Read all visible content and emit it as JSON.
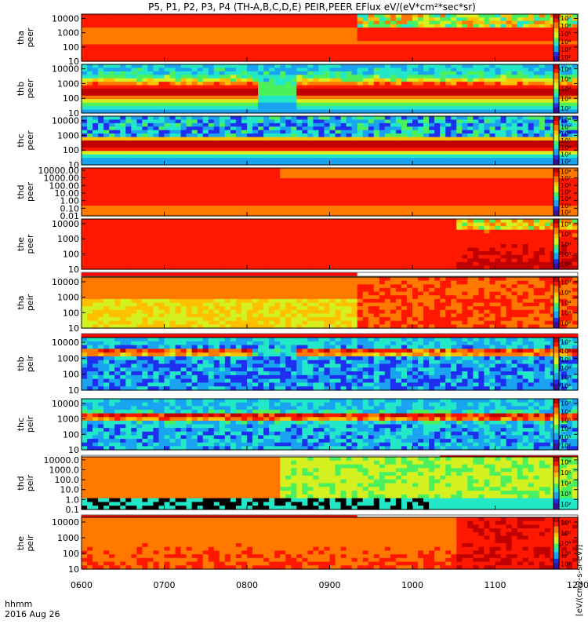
{
  "title": "P5, P1, P2, P3, P4 (TH-A,B,C,D,E) PEIR,PEER EFlux eV/(eV*cm²*sec*sr)",
  "time_axis": {
    "label_line1": "hhmm",
    "label_line2": "2016 Aug 26",
    "ticks": [
      "0600",
      "0700",
      "0800",
      "0900",
      "1000",
      "1100",
      "1200"
    ]
  },
  "colorbar_units": "[eV/(cm2-s-sr-eV)]",
  "colors": {
    "spectrogram_scale": [
      "#3a0fa0",
      "#1f2ff0",
      "#1aa3f0",
      "#22e8c8",
      "#4cf05c",
      "#d4f020",
      "#ffc000",
      "#ff7800",
      "#ff1800",
      "#c00000"
    ],
    "flag_bar": "#ff0000",
    "fill_value": "#000000"
  },
  "chart_data": [
    {
      "type": "heatmap",
      "probe": "tha",
      "species": "peer",
      "ylabel": [
        "tha",
        "peer"
      ],
      "yscale": "log",
      "ylim": [
        10,
        20000
      ],
      "yticks": [
        "10",
        "100",
        "1000",
        "10000"
      ],
      "cbar_ticks": [
        "10²",
        "10³",
        "10⁴",
        "10⁵",
        "10⁶",
        "10⁷"
      ],
      "flag_bar": "none"
    },
    {
      "type": "heatmap",
      "probe": "thb",
      "species": "peer",
      "ylabel": [
        "thb",
        "peer"
      ],
      "yscale": "log",
      "ylim": [
        10,
        20000
      ],
      "yticks": [
        "10",
        "100",
        "1000",
        "10000"
      ],
      "cbar_ticks": [
        "10²",
        "10³",
        "10⁴",
        "10⁵",
        "10⁶"
      ],
      "flag_bar": "none"
    },
    {
      "type": "heatmap",
      "probe": "thc",
      "species": "peer",
      "ylabel": [
        "thc",
        "peer"
      ],
      "yscale": "log",
      "ylim": [
        10,
        20000
      ],
      "yticks": [
        "10",
        "100",
        "1000",
        "10000"
      ],
      "cbar_ticks": [
        "10²",
        "10³",
        "10⁴",
        "10⁵",
        "10⁶",
        "10⁷",
        "10⁸"
      ],
      "flag_bar": "none"
    },
    {
      "type": "heatmap",
      "probe": "thd",
      "species": "peer",
      "ylabel": [
        "thd",
        "peer"
      ],
      "yscale": "log",
      "ylim": [
        0.01,
        20000
      ],
      "yticks": [
        "0.01",
        "0.10",
        "1.00",
        "10.00",
        "100.00",
        "1000.00",
        "10000.00"
      ],
      "cbar_ticks": [
        "10²",
        "10³",
        "10⁴",
        "10⁵",
        "10⁶",
        "10⁷",
        "10⁸"
      ],
      "flag_bar": "none"
    },
    {
      "type": "heatmap",
      "probe": "the",
      "species": "peer",
      "ylabel": [
        "the",
        "peer"
      ],
      "yscale": "log",
      "ylim": [
        10,
        20000
      ],
      "yticks": [
        "10",
        "100",
        "1000",
        "10000"
      ],
      "cbar_ticks": [
        "10²",
        "10³",
        "10⁴",
        "10⁵",
        "10⁶"
      ],
      "flag_bar": [
        600,
        920
      ]
    },
    {
      "type": "heatmap",
      "probe": "tha",
      "species": "peir",
      "ylabel": [
        "tha",
        "peir"
      ],
      "yscale": "log",
      "ylim": [
        10,
        20000
      ],
      "yticks": [
        "10",
        "100",
        "1000",
        "10000"
      ],
      "cbar_ticks": [
        "10²",
        "10³",
        "10⁴",
        "10⁵",
        "10⁶"
      ],
      "flag_bar": [
        600,
        1200
      ]
    },
    {
      "type": "heatmap",
      "probe": "thb",
      "species": "peir",
      "ylabel": [
        "thb",
        "peir"
      ],
      "yscale": "log",
      "ylim": [
        10,
        20000
      ],
      "yticks": [
        "10",
        "100",
        "1000",
        "10000"
      ],
      "cbar_ticks": [
        "10²",
        "10³",
        "10⁴",
        "10⁵",
        "10⁶",
        "10⁷"
      ],
      "flag_bar": "none"
    },
    {
      "type": "heatmap",
      "probe": "thc",
      "species": "peir",
      "ylabel": [
        "thc",
        "peir"
      ],
      "yscale": "log",
      "ylim": [
        10,
        20000
      ],
      "yticks": [
        "10",
        "100",
        "1000",
        "10000"
      ],
      "cbar_ticks": [
        "10²",
        "10³",
        "10⁴",
        "10⁵",
        "10⁶",
        "10⁷"
      ],
      "flag_bar": [
        1020,
        1200
      ]
    },
    {
      "type": "heatmap",
      "probe": "thd",
      "species": "peir",
      "ylabel": [
        "thd",
        "peir"
      ],
      "yscale": "log",
      "ylim": [
        0.1,
        20000
      ],
      "yticks": [
        "0.1",
        "1.0",
        "10.0",
        "100.0",
        "1000.0",
        "10000.0"
      ],
      "cbar_ticks": [
        "10²",
        "10³",
        "10⁴",
        "10⁵",
        "10⁶"
      ],
      "flag_bar": [
        600,
        920
      ]
    },
    {
      "type": "heatmap",
      "probe": "the",
      "species": "peir",
      "ylabel": [
        "the",
        "peir"
      ],
      "yscale": "log",
      "ylim": [
        10,
        20000
      ],
      "yticks": [
        "10",
        "100",
        "1000",
        "10000"
      ],
      "cbar_ticks": [
        "10²",
        "10³",
        "10⁴",
        "10⁵",
        "10⁶"
      ],
      "flag_bar": "none"
    }
  ]
}
